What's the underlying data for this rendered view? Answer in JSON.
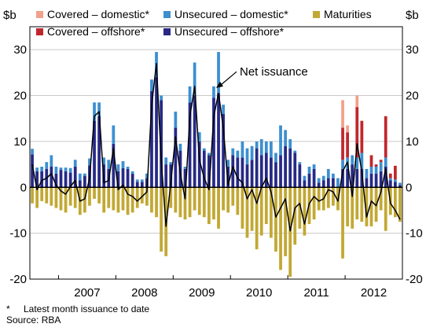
{
  "chart_data": {
    "type": "bar",
    "stacked": true,
    "y_unit_left": "$b",
    "y_unit_right": "$b",
    "ylim": [
      -20,
      35
    ],
    "yticks": [
      -20,
      -10,
      0,
      10,
      20,
      30
    ],
    "x_start": "2006-07",
    "x_end": "2012-12",
    "year_labels": [
      "2007",
      "2008",
      "2009",
      "2010",
      "2011",
      "2012"
    ],
    "legend": [
      {
        "key": "cov_dom",
        "label": "Covered – domestic*",
        "color": "#f2a08a"
      },
      {
        "key": "uns_dom",
        "label": "Unsecured – domestic*",
        "color": "#3d8fd0"
      },
      {
        "key": "mat",
        "label": "Maturities",
        "color": "#c2a833"
      },
      {
        "key": "cov_off",
        "label": "Covered – offshore*",
        "color": "#c0272d"
      },
      {
        "key": "uns_off",
        "label": "Unsecured – offshore*",
        "color": "#262985"
      }
    ],
    "net_label": "Net issuance",
    "net_color": "#000000",
    "series": {
      "uns_off": [
        7.2,
        3.5,
        3.5,
        4.0,
        4.5,
        3.0,
        3.8,
        3.5,
        3.2,
        4.5,
        1.5,
        2.5,
        4.8,
        14.5,
        15.5,
        5.0,
        4.0,
        9.5,
        3.5,
        4.2,
        4.0,
        3.0,
        1.2,
        1.2,
        2.0,
        21.0,
        24.0,
        19.0,
        5.0,
        5.0,
        13.0,
        8.0,
        4.0,
        18.5,
        20.0,
        10.0,
        8.0,
        7.0,
        19.5,
        20.5,
        16.0,
        4.5,
        7.0,
        6.5,
        6.5,
        5.0,
        6.0,
        8.5,
        7.0,
        7.5,
        6.5,
        5.5,
        7.0,
        9.0,
        8.5,
        7.5,
        5.0,
        1.5,
        3.0,
        4.0,
        1.0,
        1.5,
        2.0,
        2.0,
        0.0,
        4.0,
        4.0,
        5.0,
        4.0,
        4.0,
        2.0,
        3.0,
        3.0,
        3.5,
        4.5,
        1.5,
        1.2,
        0.5
      ],
      "uns_dom": [
        1.2,
        0.8,
        1.0,
        1.5,
        2.5,
        1.5,
        0.5,
        0.8,
        1.0,
        1.5,
        1.5,
        0.5,
        1.5,
        4.0,
        3.0,
        1.5,
        2.0,
        4.0,
        1.5,
        1.5,
        0.5,
        0.5,
        0.5,
        0.5,
        1.0,
        2.5,
        5.5,
        1.0,
        1.5,
        0.5,
        3.5,
        1.5,
        0.5,
        3.5,
        7.2,
        2.0,
        0.5,
        0.5,
        2.5,
        9.0,
        2.0,
        1.5,
        1.5,
        1.5,
        3.5,
        3.5,
        3.0,
        1.5,
        3.5,
        2.5,
        3.5,
        2.0,
        6.5,
        3.5,
        2.0,
        0.5,
        0.5,
        1.0,
        1.5,
        1.0,
        1.0,
        1.0,
        2.0,
        1.0,
        2.0,
        2.0,
        2.5,
        2.0,
        2.5,
        3.5,
        2.0,
        1.5,
        1.5,
        2.0,
        2.0,
        0.5,
        0.5,
        0.5
      ],
      "cov_off": [
        0,
        0,
        0,
        0,
        0,
        0,
        0,
        0,
        0,
        0,
        0,
        0,
        0,
        0,
        0,
        0,
        0,
        0,
        0,
        0,
        0,
        0,
        0,
        0,
        0,
        0,
        0,
        0,
        0,
        0,
        0,
        0,
        0,
        0,
        0,
        0,
        0,
        0,
        0,
        0,
        0,
        0,
        0,
        0,
        0,
        0,
        0,
        0,
        0,
        0,
        0,
        0,
        0,
        0,
        0,
        0,
        0,
        0,
        0,
        0,
        0,
        0,
        0,
        0,
        0,
        7.0,
        5.5,
        0.0,
        11.0,
        7.0,
        0.0,
        2.5,
        0.5,
        0.5,
        9.0,
        1.0,
        3.0,
        0.0
      ],
      "cov_dom": [
        0,
        0,
        0,
        0,
        0,
        0,
        0,
        0,
        0,
        0,
        0,
        0,
        0,
        0,
        0,
        0,
        0,
        0,
        0,
        0,
        0,
        0,
        0,
        0,
        0,
        0,
        0,
        0,
        0,
        0,
        0,
        0,
        0,
        0,
        0,
        0,
        0,
        0,
        0,
        0,
        0,
        0,
        0,
        0,
        0,
        0,
        0,
        0,
        0,
        0,
        0,
        0,
        0,
        0,
        0,
        0,
        0,
        0,
        0,
        0,
        0,
        0,
        0,
        0,
        0,
        6.0,
        1.5,
        0.0,
        2.5,
        0.0,
        0.0,
        0.0,
        0.0,
        0.0,
        0.0,
        0.0,
        0.0,
        0.0
      ],
      "mat": [
        -3.5,
        -4.5,
        -3.0,
        -3.5,
        -4.0,
        -4.5,
        -5.0,
        -5.5,
        -4.0,
        -4.5,
        -6.0,
        -5.5,
        -4.0,
        -2.5,
        -3.5,
        -5.5,
        -4.5,
        -5.0,
        -5.5,
        -5.0,
        -6.0,
        -5.5,
        -4.5,
        -3.5,
        -4.0,
        -5.5,
        -6.5,
        -14.0,
        -15.0,
        -4.5,
        -5.5,
        -6.5,
        -7.0,
        -6.5,
        -5.0,
        -6.0,
        -6.5,
        -8.0,
        -7.0,
        -9.0,
        -5.0,
        -5.5,
        -4.0,
        -6.0,
        -9.0,
        -11.0,
        -9.5,
        -13.5,
        -10.5,
        -8.0,
        -11.0,
        -14.0,
        -18.0,
        -15.0,
        -19.5,
        -12.5,
        -9.0,
        -10.5,
        -8.0,
        -7.0,
        -5.0,
        -5.0,
        -4.5,
        -4.0,
        -5.0,
        -15.5,
        -8.5,
        -9.0,
        -7.0,
        -7.5,
        -8.5,
        -8.5,
        -7.5,
        -5.0,
        -9.5,
        -6.0,
        -6.5,
        -7.5
      ],
      "net": [
        5.0,
        -0.5,
        1.5,
        2.0,
        3.0,
        0.5,
        -0.8,
        -1.5,
        0.2,
        1.5,
        -3.0,
        -2.5,
        2.0,
        15.5,
        16.5,
        1.0,
        1.5,
        8.5,
        -0.5,
        0.5,
        -1.5,
        -2.0,
        -3.0,
        -2.0,
        -1.0,
        18.0,
        27.0,
        6.0,
        -8.5,
        1.0,
        11.0,
        3.0,
        -2.5,
        15.5,
        22.0,
        6.0,
        2.0,
        -0.5,
        15.5,
        20.5,
        13.0,
        0.5,
        4.5,
        2.0,
        1.0,
        -2.5,
        -0.5,
        -3.5,
        0.0,
        2.0,
        -1.0,
        -6.5,
        -4.5,
        -2.5,
        -9.5,
        -4.5,
        -3.5,
        -8.0,
        -3.5,
        -2.0,
        -3.0,
        -2.5,
        -0.5,
        -1.0,
        -3.0,
        3.5,
        5.5,
        -2.0,
        9.5,
        3.5,
        -6.5,
        -3.0,
        -4.0,
        -1.0,
        4.0,
        -3.5,
        -5.0,
        -7.0
      ]
    },
    "annotation": {
      "text": "Net issuance",
      "points_to": {
        "x": "2009-09",
        "y": 22
      }
    },
    "grid": true,
    "legend_placement": "top-left"
  },
  "footnotes": {
    "star": "*",
    "note": "Latest month issuance to date",
    "source": "Source: RBA"
  }
}
